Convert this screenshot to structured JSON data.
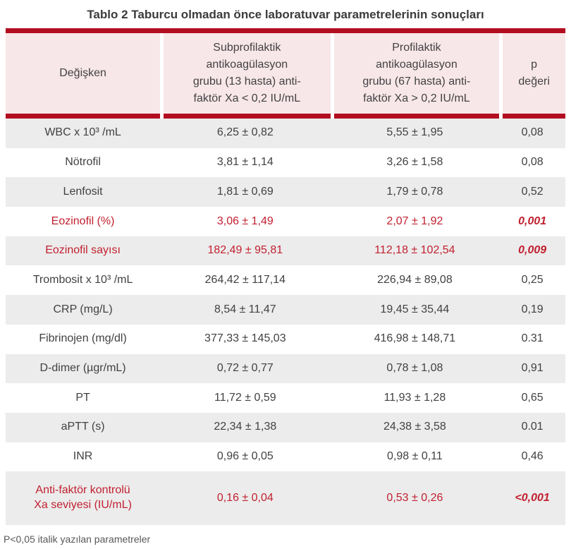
{
  "title": "Tablo 2 Taburcu olmadan önce laboratuvar parametrelerinin sonuçları",
  "colors": {
    "bar_red": "#b30d20",
    "header_pink": "#f8e7e8",
    "row_gray": "#ececec",
    "text_dark": "#414144",
    "text_red": "#c12130",
    "footnote_gray": "#57585a"
  },
  "table": {
    "columns": [
      "Değişken",
      "Subprofilaktik\nantikoagülasyon\ngrubu (13 hasta) anti-\nfaktör Xa < 0,2 IU/mL",
      "Profilaktik\nantikoagülasyon\ngrubu (67 hasta) anti-\nfaktör Xa > 0,2 IU/mL",
      "p\ndeğeri"
    ],
    "rows": [
      {
        "label": "WBC x 10³ /mL",
        "group1": "6,25 ± 0,82",
        "group2": "5,55 ± 1,95",
        "p": "0,08",
        "highlight": false,
        "p_italic": false
      },
      {
        "label": "Nötrofil",
        "group1": "3,81 ± 1,14",
        "group2": "3,26 ± 1,58",
        "p": "0,08",
        "highlight": false,
        "p_italic": false
      },
      {
        "label": "Lenfosit",
        "group1": "1,81 ± 0,69",
        "group2": "1,79 ± 0,78",
        "p": "0,52",
        "highlight": false,
        "p_italic": false
      },
      {
        "label": "Eozinofil (%)",
        "group1": "3,06 ± 1,49",
        "group2": "2,07 ± 1,92",
        "p": "0,001",
        "highlight": true,
        "p_italic": true
      },
      {
        "label": "Eozinofil sayısı",
        "group1": "182,49 ± 95,81",
        "group2": "112,18 ± 102,54",
        "p": "0,009",
        "highlight": true,
        "p_italic": true
      },
      {
        "label": "Trombosit x 10³ /mL",
        "group1": "264,42 ± 117,14",
        "group2": "226,94 ± 89,08",
        "p": "0,25",
        "highlight": false,
        "p_italic": false
      },
      {
        "label": "CRP (mg/L)",
        "group1": "8,54 ± 11,47",
        "group2": "19,45 ± 35,44",
        "p": "0,19",
        "highlight": false,
        "p_italic": false
      },
      {
        "label": "Fibrinojen (mg/dl)",
        "group1": "377,33 ± 145,03",
        "group2": "416,98 ± 148,71",
        "p": "0.31",
        "highlight": false,
        "p_italic": false
      },
      {
        "label": "D-dimer (µgr/mL)",
        "group1": "0,72 ± 0,77",
        "group2": "0,78 ± 1,08",
        "p": "0,91",
        "highlight": false,
        "p_italic": false
      },
      {
        "label": "PT",
        "group1": "11,72 ± 0,59",
        "group2": "11,93 ± 1,28",
        "p": "0,65",
        "highlight": false,
        "p_italic": false
      },
      {
        "label": "aPTT (s)",
        "group1": "22,34 ± 1,38",
        "group2": "24,38 ± 3,58",
        "p": "0.01",
        "highlight": false,
        "p_italic": false
      },
      {
        "label": "INR",
        "group1": "0,96 ± 0,05",
        "group2": "0,98 ± 0,11",
        "p": "0,46",
        "highlight": false,
        "p_italic": false
      },
      {
        "label": "Anti-faktör kontrolü\nXa seviyesi (IU/mL)",
        "group1": "0,16 ± 0,04",
        "group2": "0,53 ± 0,26",
        "p": "<0,001",
        "highlight": true,
        "p_italic": true
      }
    ]
  },
  "footnote": "P<0,05 italik yazılan parametreler"
}
